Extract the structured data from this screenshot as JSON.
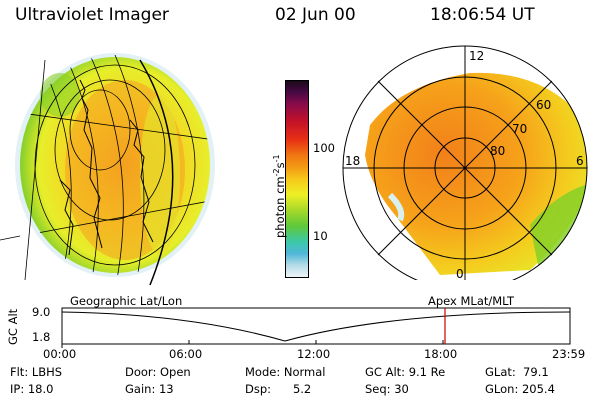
{
  "header": {
    "instrument": "Ultraviolet Imager",
    "date": "02 Jun 00",
    "time": "18:06:54 UT"
  },
  "colorbar": {
    "label": "photon cm^-2 s^-1",
    "label_main": "photon cm",
    "label_exp1": "-2",
    "label_mid": "s",
    "label_exp2": "-1",
    "tick_100": "100",
    "tick_10": "10"
  },
  "polar": {
    "mlt_labels": {
      "top": "12",
      "left": "18",
      "right": "6",
      "bottom": "0"
    },
    "lat_labels": [
      "60",
      "70",
      "80"
    ]
  },
  "timeline": {
    "left_caption": "Geographic Lat/Lon",
    "right_caption": "Apex MLat/MLT",
    "axis_label": "GC Alt",
    "y_max": "9.0",
    "y_min": "1.8",
    "time_ticks": [
      "00:00",
      "06:00",
      "12:00",
      "18:00",
      "23:59"
    ],
    "marker_time": "18:06:54"
  },
  "footer": {
    "row1": {
      "flt": "Flt: LBHS",
      "door": "Door: Open",
      "mode": "Mode: Normal",
      "gcalt": "GC Alt: 9.1 Re",
      "glat": "GLat:  79.1"
    },
    "row2": {
      "ip": "IP: 18.0",
      "gain": "Gain: 13",
      "dsp": "Dsp:      5.2",
      "seq": "Seq: 30",
      "glon": "GLon: 205.4"
    }
  },
  "colors": {
    "red_marker": "#cc0000",
    "aurora_orange": "#f39014",
    "aurora_yellow": "#f4e41c",
    "aurora_green": "#86d028",
    "aurora_cyan": "#33cccc"
  }
}
